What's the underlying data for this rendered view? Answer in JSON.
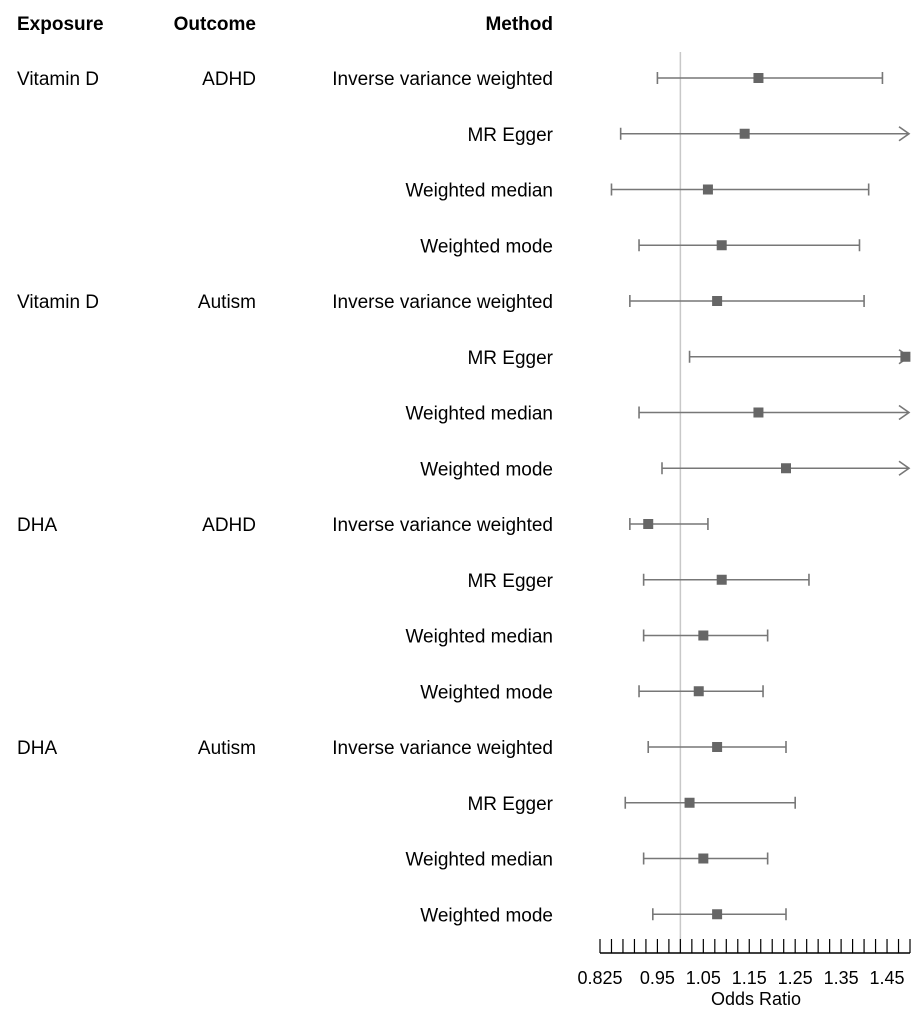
{
  "chart_data": {
    "type": "forest",
    "headers": {
      "exposure": "Exposure",
      "outcome": "Outcome",
      "method": "Method"
    },
    "xlabel": "Odds Ratio",
    "xlim": [
      0.825,
      1.5
    ],
    "reference_line": 1.0,
    "ticks": [
      "0.825",
      "0.95",
      "1.05",
      "1.15",
      "1.25",
      "1.35",
      "1.45"
    ],
    "tick_values": [
      0.825,
      0.95,
      1.05,
      1.15,
      1.25,
      1.35,
      1.45
    ],
    "colors": {
      "marker": "#666666",
      "ci_line": "#777777",
      "reference": "#c8c8c8",
      "text": "#1a1a1a"
    },
    "rows": [
      {
        "exposure": "Vitamin D",
        "outcome": "ADHD",
        "method": "Inverse variance weighted",
        "or": 1.17,
        "lower": 0.95,
        "upper": 1.44
      },
      {
        "exposure": "",
        "outcome": "",
        "method": "MR Egger",
        "or": 1.14,
        "lower": 0.87,
        "upper": 1.58
      },
      {
        "exposure": "",
        "outcome": "",
        "method": "Weighted median",
        "or": 1.06,
        "lower": 0.85,
        "upper": 1.41
      },
      {
        "exposure": "",
        "outcome": "",
        "method": "Weighted mode",
        "or": 1.09,
        "lower": 0.91,
        "upper": 1.39
      },
      {
        "exposure": "Vitamin D",
        "outcome": "Autism",
        "method": "Inverse variance weighted",
        "or": 1.08,
        "lower": 0.89,
        "upper": 1.4
      },
      {
        "exposure": "",
        "outcome": "",
        "method": "MR Egger",
        "or": 1.52,
        "lower": 1.02,
        "upper": 1.62,
        "upper_truncated": true
      },
      {
        "exposure": "",
        "outcome": "",
        "method": "Weighted median",
        "or": 1.17,
        "lower": 0.91,
        "upper": 1.58
      },
      {
        "exposure": "",
        "outcome": "",
        "method": "Weighted mode",
        "or": 1.23,
        "lower": 0.96,
        "upper": 1.54
      },
      {
        "exposure": "DHA",
        "outcome": "ADHD",
        "method": "Inverse variance weighted",
        "or": 0.93,
        "lower": 0.89,
        "upper": 1.06
      },
      {
        "exposure": "",
        "outcome": "",
        "method": "MR Egger",
        "or": 1.09,
        "lower": 0.92,
        "upper": 1.28
      },
      {
        "exposure": "",
        "outcome": "",
        "method": "Weighted median",
        "or": 1.05,
        "lower": 0.92,
        "upper": 1.19
      },
      {
        "exposure": "",
        "outcome": "",
        "method": "Weighted mode",
        "or": 1.04,
        "lower": 0.91,
        "upper": 1.18
      },
      {
        "exposure": "DHA",
        "outcome": "Autism",
        "method": "Inverse variance weighted",
        "or": 1.08,
        "lower": 0.93,
        "upper": 1.23
      },
      {
        "exposure": "",
        "outcome": "",
        "method": "MR Egger",
        "or": 1.02,
        "lower": 0.88,
        "upper": 1.25
      },
      {
        "exposure": "",
        "outcome": "",
        "method": "Weighted median",
        "or": 1.05,
        "lower": 0.92,
        "upper": 1.19
      },
      {
        "exposure": "",
        "outcome": "",
        "method": "Weighted mode",
        "or": 1.08,
        "lower": 0.94,
        "upper": 1.23
      }
    ]
  }
}
